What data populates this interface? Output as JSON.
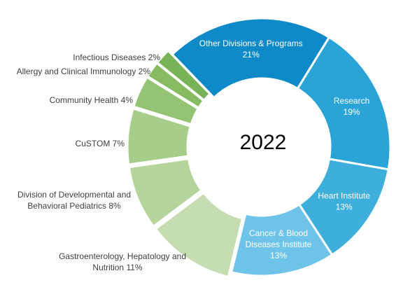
{
  "chart_data": {
    "type": "pie",
    "center_text": "2022",
    "slices": [
      {
        "name": "Other Divisions & Programs",
        "value": 21,
        "value_label": "21%",
        "color": "#0f8ac8",
        "label_lines": [
          "Other Divisions & Programs",
          "21%"
        ],
        "label_pos": "inside"
      },
      {
        "name": "Research",
        "value": 19,
        "value_label": "19%",
        "color": "#2aa3d6",
        "label_lines": [
          "Research",
          "19%"
        ],
        "label_pos": "inside"
      },
      {
        "name": "Heart Institute",
        "value": 13,
        "value_label": "13%",
        "color": "#3eafdb",
        "label_lines": [
          "Heart Institute",
          "13%"
        ],
        "label_pos": "inside"
      },
      {
        "name": "Cancer & Blood Diseases Institute",
        "value": 13,
        "value_label": "13%",
        "color": "#6ec4e8",
        "label_lines": [
          "Cancer & Blood",
          "Diseases Institute",
          "13%"
        ],
        "label_pos": "inside"
      },
      {
        "name": "Gastroenterology, Hepatology and Nutrition",
        "value": 11,
        "value_label": "11%",
        "color": "#c5ddb0",
        "label_lines": [
          "Gastroenterology, Hepatology and",
          "Nutrition 11%"
        ],
        "label_pos": "outside"
      },
      {
        "name": "Division of Developmental and Behavioral Pediatrics",
        "value": 8,
        "value_label": "8%",
        "color": "#b4d49b",
        "label_lines": [
          "Division of Developmental and",
          "Behavioral Pediatrics 8%"
        ],
        "label_pos": "outside"
      },
      {
        "name": "CuSTOM",
        "value": 7,
        "value_label": "7%",
        "color": "#a6cd89",
        "label_lines": [
          "CuSTOM 7%"
        ],
        "label_pos": "outside"
      },
      {
        "name": "Community Health",
        "value": 4,
        "value_label": "4%",
        "color": "#93c373",
        "label_lines": [
          "Community Health 4%"
        ],
        "label_pos": "outside"
      },
      {
        "name": "Allergy and Clinical Immunology",
        "value": 2,
        "value_label": "2%",
        "color": "#86bb62",
        "label_lines": [
          "Allergy and Clinical Immunology 2%"
        ],
        "label_pos": "outside"
      },
      {
        "name": "Infectious Diseases",
        "value": 2,
        "value_label": "2%",
        "color": "#79b357",
        "label_lines": [
          "Infectious Diseases 2%"
        ],
        "label_pos": "outside"
      }
    ]
  }
}
